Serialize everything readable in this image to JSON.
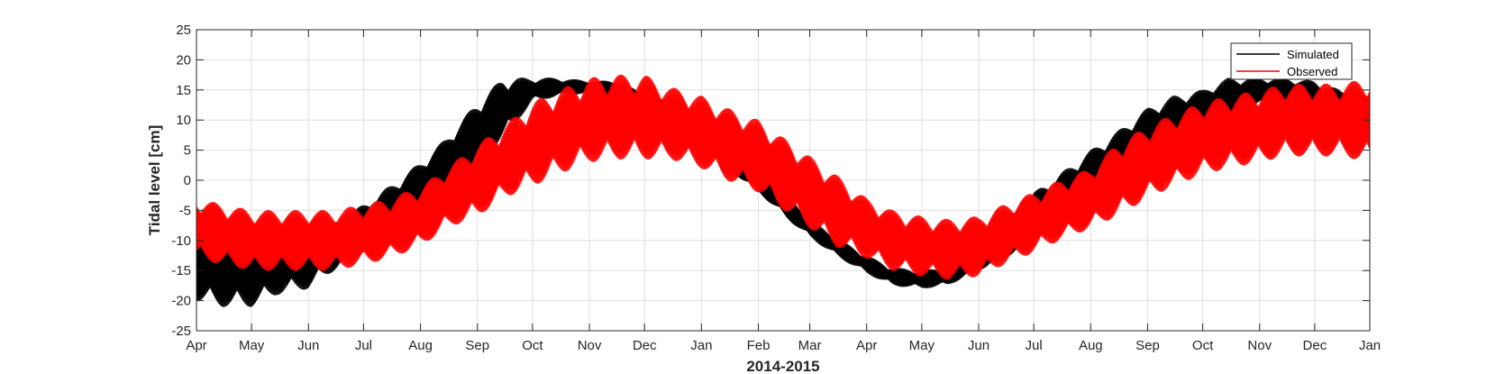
{
  "chart_data": {
    "type": "line",
    "title": "",
    "xlabel": "2014-2015",
    "ylabel": "Tidal level [cm]",
    "x_ticks": [
      "Apr",
      "May",
      "Jun",
      "Jul",
      "Aug",
      "Sep",
      "Oct",
      "Nov",
      "Dec",
      "Jan",
      "Feb",
      "Mar",
      "Apr",
      "May",
      "Jun",
      "Jul",
      "Aug",
      "Sep",
      "Oct",
      "Nov",
      "Dec",
      "Jan"
    ],
    "xlim": [
      "2014-04-01",
      "2015-12-31"
    ],
    "ylim": [
      -25,
      25
    ],
    "y_ticks": [
      -25,
      -20,
      -15,
      -10,
      -5,
      0,
      5,
      10,
      15,
      20,
      25
    ],
    "grid": true,
    "legend_position": "top-right",
    "series": [
      {
        "name": "Simulated",
        "color": "#000000",
        "x": [
          "2014-04-01",
          "2014-04-15",
          "2014-05-01",
          "2014-05-15",
          "2014-06-01",
          "2014-06-15",
          "2014-07-01",
          "2014-07-15",
          "2014-08-01",
          "2014-08-15",
          "2014-09-01",
          "2014-09-15",
          "2014-10-01",
          "2014-10-15",
          "2014-11-01",
          "2014-11-15",
          "2014-12-01",
          "2014-12-15",
          "2015-01-01",
          "2015-01-15",
          "2015-02-01",
          "2015-02-15",
          "2015-03-01",
          "2015-03-15",
          "2015-04-01",
          "2015-04-15",
          "2015-05-01",
          "2015-05-15",
          "2015-06-01",
          "2015-06-15",
          "2015-07-01",
          "2015-07-15",
          "2015-08-01",
          "2015-08-15",
          "2015-09-01",
          "2015-09-15",
          "2015-10-01",
          "2015-10-15",
          "2015-11-01",
          "2015-11-15",
          "2015-12-01",
          "2015-12-15",
          "2015-12-31"
        ],
        "mean": [
          -14,
          -15,
          -15,
          -14,
          -13,
          -11,
          -8,
          -5,
          -1,
          3,
          8,
          12,
          15,
          15.5,
          15.5,
          15,
          13,
          11,
          8,
          4,
          0,
          -4,
          -8,
          -11,
          -14,
          -16,
          -16.5,
          -16,
          -13,
          -10,
          -6,
          -3,
          1,
          4,
          8,
          10,
          12,
          14,
          15,
          15,
          14,
          12,
          10
        ],
        "amplitude": [
          6,
          6,
          6,
          5,
          5,
          4,
          4,
          4,
          4,
          4,
          5,
          5,
          2,
          1.5,
          1,
          1.5,
          1.5,
          2,
          2,
          2,
          2,
          2,
          1.5,
          1.5,
          1.5,
          1.5,
          1.5,
          1.5,
          2,
          3,
          4,
          4,
          4,
          4,
          4,
          4,
          3,
          3,
          2,
          2,
          2.5,
          3,
          4
        ]
      },
      {
        "name": "Observed",
        "color": "#ff0000",
        "x": [
          "2014-04-01",
          "2014-04-15",
          "2014-05-01",
          "2014-05-15",
          "2014-06-01",
          "2014-06-15",
          "2014-07-01",
          "2014-07-15",
          "2014-08-01",
          "2014-08-15",
          "2014-09-01",
          "2014-09-15",
          "2014-10-01",
          "2014-10-15",
          "2014-11-01",
          "2014-11-15",
          "2014-12-01",
          "2014-12-15",
          "2015-01-01",
          "2015-01-15",
          "2015-02-01",
          "2015-02-15",
          "2015-03-01",
          "2015-03-15",
          "2015-04-01",
          "2015-04-15",
          "2015-05-01",
          "2015-05-15",
          "2015-06-01",
          "2015-06-15",
          "2015-07-01",
          "2015-07-15",
          "2015-08-01",
          "2015-08-15",
          "2015-09-01",
          "2015-09-15",
          "2015-10-01",
          "2015-10-15",
          "2015-11-01",
          "2015-11-15",
          "2015-12-01",
          "2015-12-15",
          "2015-12-31"
        ],
        "mean": [
          -8,
          -9,
          -10,
          -10,
          -10,
          -10,
          -9,
          -8,
          -6,
          -3,
          0,
          3,
          6,
          8,
          10,
          10.5,
          10.5,
          9.5,
          8,
          6,
          4,
          1,
          -2,
          -5,
          -8,
          -10,
          -11,
          -11.5,
          -11,
          -9,
          -7,
          -5,
          -3,
          0,
          3,
          5,
          7,
          8,
          9,
          10,
          10,
          10,
          10
        ],
        "amplitude": [
          5,
          5,
          5,
          5,
          5,
          5,
          5,
          5,
          5,
          5,
          6,
          6,
          7,
          7,
          7,
          7,
          7,
          6,
          6,
          6,
          6,
          6,
          6,
          6,
          5,
          5,
          5,
          5,
          5,
          5,
          5,
          5,
          5,
          6,
          6,
          6,
          6,
          6,
          6,
          6,
          6,
          6,
          7
        ]
      }
    ]
  }
}
